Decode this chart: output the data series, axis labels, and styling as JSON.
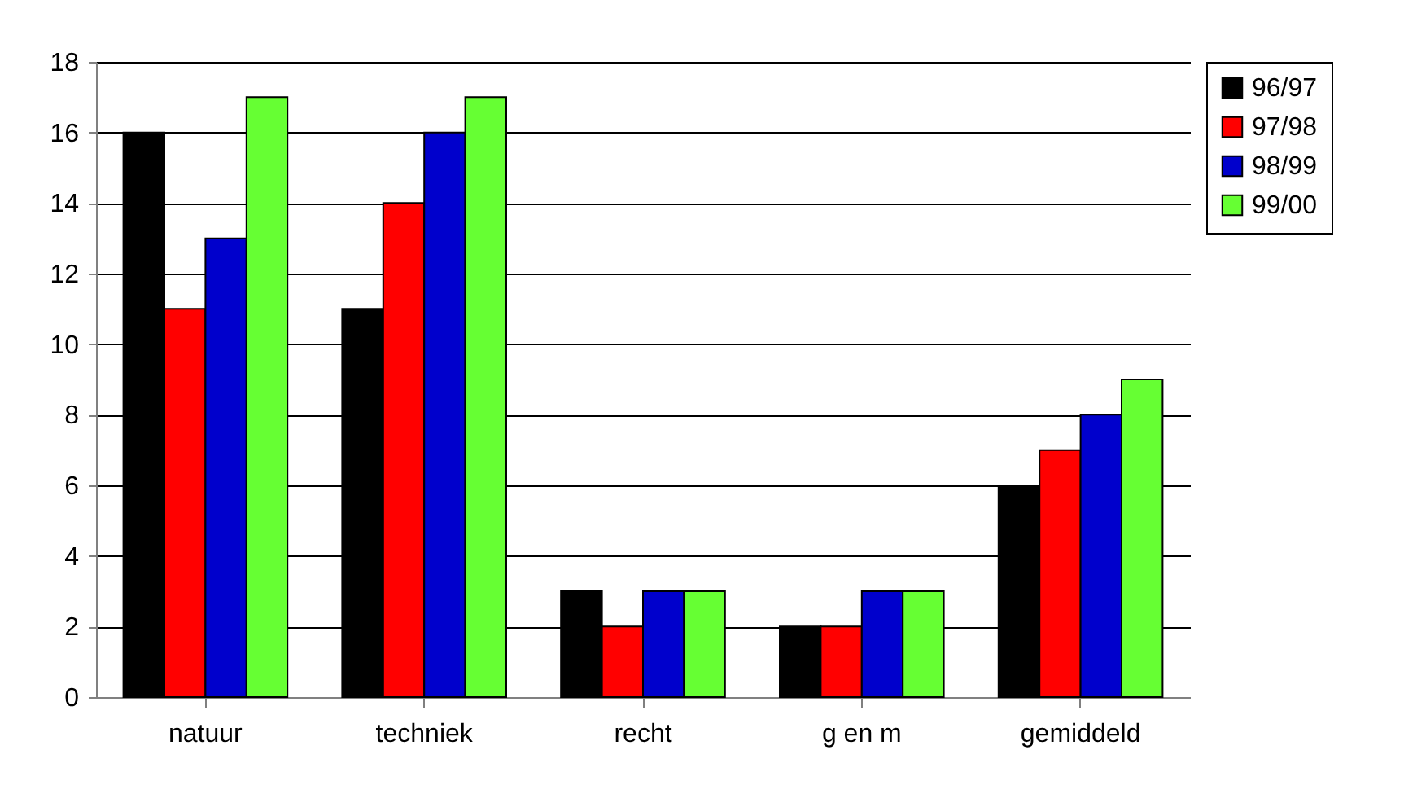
{
  "chart_data": {
    "type": "bar",
    "categories": [
      "natuur",
      "techniek",
      "recht",
      "g en m",
      "gemiddeld"
    ],
    "series": [
      {
        "name": "96/97",
        "color": "#000000",
        "values": [
          16,
          11,
          3,
          2,
          6
        ]
      },
      {
        "name": "97/98",
        "color": "#ff0000",
        "values": [
          11,
          14,
          2,
          2,
          7
        ]
      },
      {
        "name": "98/99",
        "color": "#0000cc",
        "values": [
          13,
          16,
          3,
          3,
          8
        ]
      },
      {
        "name": "99/00",
        "color": "#66ff33",
        "values": [
          17,
          17,
          3,
          3,
          9
        ]
      }
    ],
    "ylim": [
      0,
      18
    ],
    "yticks": [
      0,
      2,
      4,
      6,
      8,
      10,
      12,
      14,
      16,
      18
    ],
    "grid": "y",
    "legend": "right"
  }
}
